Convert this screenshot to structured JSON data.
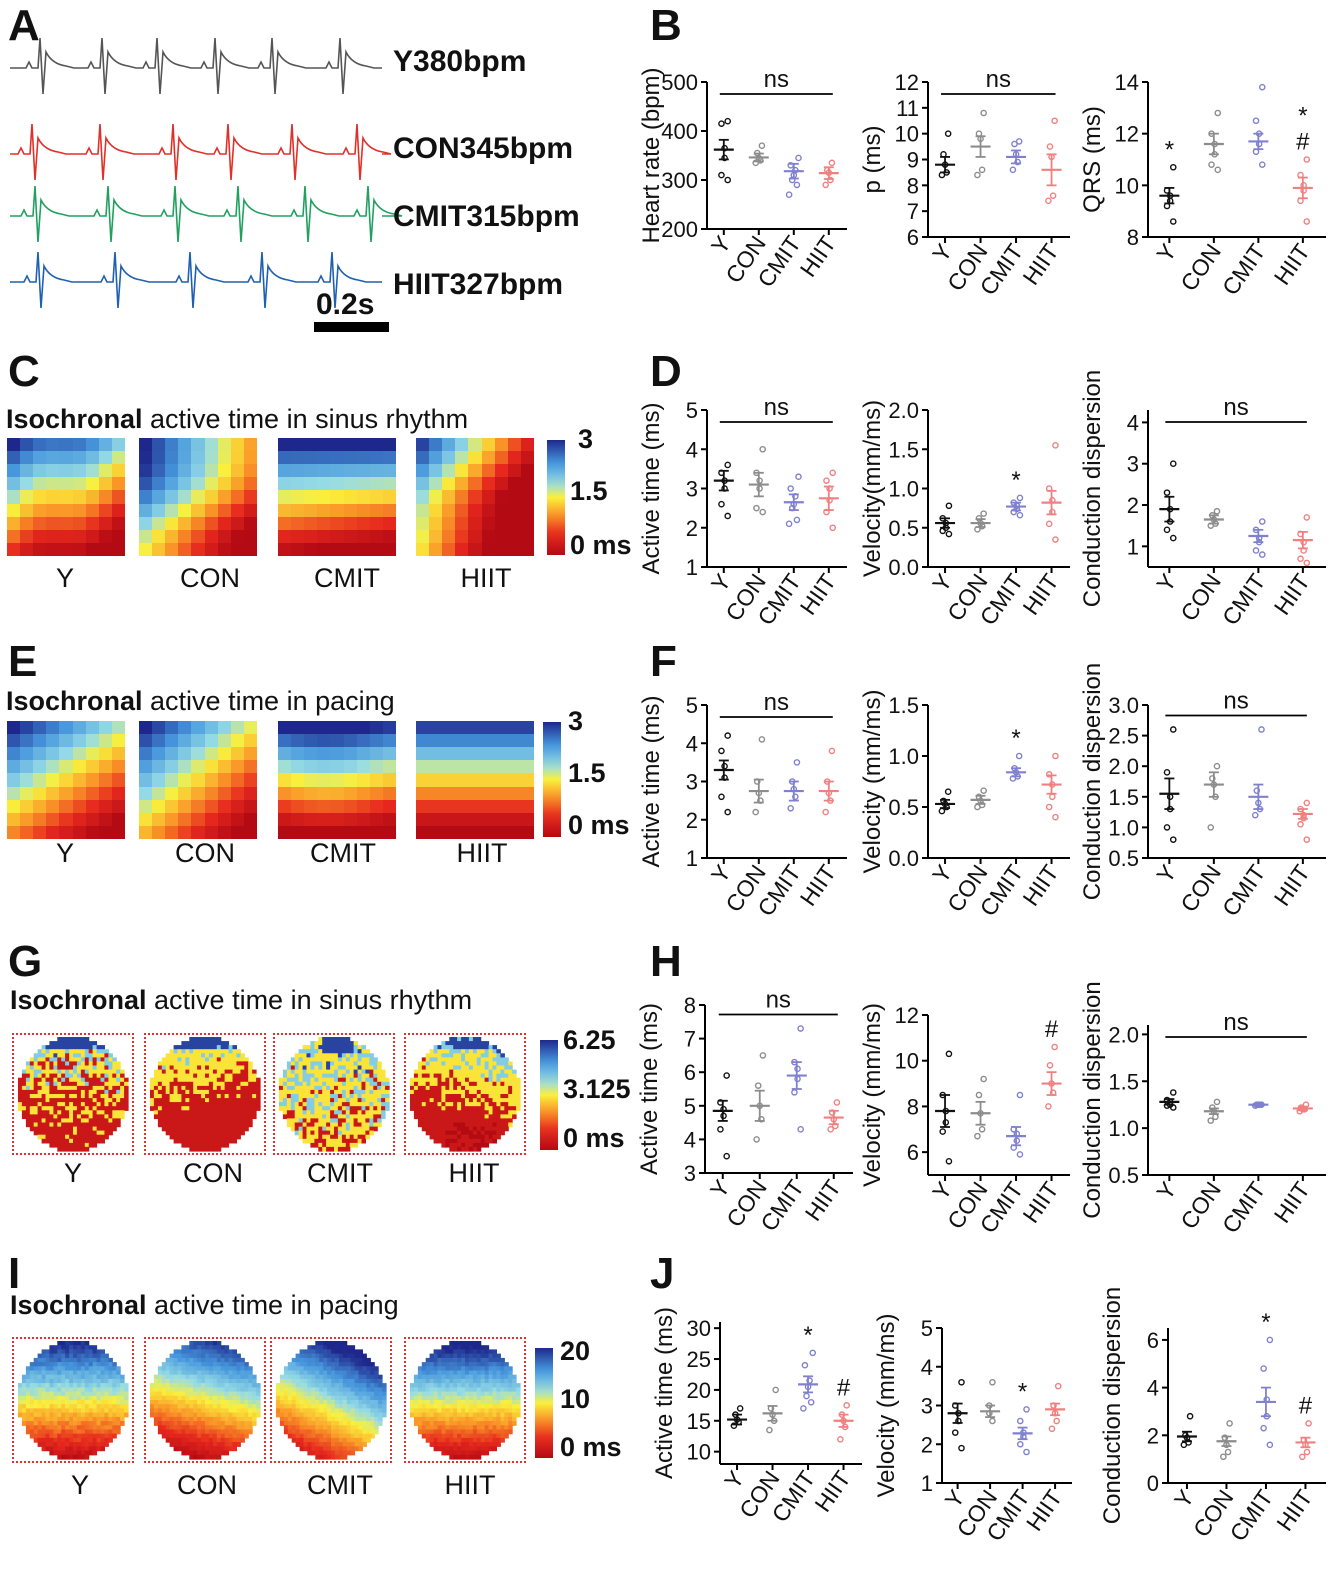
{
  "panel_letters": {
    "A": "A",
    "B": "B",
    "C": "C",
    "D": "D",
    "E": "E",
    "F": "F",
    "G": "G",
    "H": "H",
    "I": "I",
    "J": "J"
  },
  "headings": {
    "C": {
      "bold": "Isochronal",
      "rest": " active time in sinus rhythm"
    },
    "E": {
      "bold": "Isochronal",
      "rest": " active time in pacing"
    },
    "G": {
      "bold": "Isochronal",
      "rest": " active time in sinus rhythm"
    },
    "I": {
      "bold": "Isochronal",
      "rest": " active time in pacing"
    }
  },
  "ecg_traces": [
    {
      "label": "Y380bpm",
      "color": "#555555"
    },
    {
      "label": "CON345bpm",
      "color": "#e0302a"
    },
    {
      "label": "CMIT315bpm",
      "color": "#21a060"
    },
    {
      "label": "HIIT327bpm",
      "color": "#2060b0"
    }
  ],
  "scale_bar_label": "0.2s",
  "group_labels": [
    "Y",
    "CON",
    "CMIT",
    "HIIT"
  ],
  "colorbars": {
    "C": [
      "3",
      "1.5",
      "0 ms"
    ],
    "E": [
      "3",
      "1.5",
      "0 ms"
    ],
    "G": [
      "6.25",
      "3.125",
      "0 ms"
    ],
    "I": [
      "20",
      "10",
      "0 ms"
    ]
  },
  "colors": {
    "Y": "#111111",
    "CON": "#8c8c8c",
    "CMIT": "#8080d0",
    "HIIT": "#f08080"
  },
  "chart_data": [
    {
      "panel": "B",
      "type": "scatter",
      "ylabel": "Heart rate (bpm)",
      "ylim": [
        200,
        500
      ],
      "yticks": [
        "200",
        "300",
        "400",
        "500"
      ],
      "categories": [
        "Y",
        "CON",
        "CMIT",
        "HIIT"
      ],
      "means": [
        362,
        346,
        318,
        314
      ],
      "sem": [
        20,
        8,
        15,
        12
      ],
      "points": [
        [
          420,
          415,
          365,
          345,
          310,
          300
        ],
        [
          370,
          355,
          345,
          340,
          335
        ],
        [
          345,
          330,
          320,
          310,
          300,
          290,
          270
        ],
        [
          335,
          320,
          315,
          300,
          290
        ]
      ],
      "annotations": [
        {
          "text": "ns",
          "type": "bracket",
          "from": 0,
          "to": 3
        }
      ]
    },
    {
      "panel": "B",
      "type": "scatter",
      "ylabel": "p (ms)",
      "ylim": [
        6,
        12
      ],
      "yticks": [
        "6",
        "7",
        "8",
        "9",
        "10",
        "11",
        "12"
      ],
      "categories": [
        "Y",
        "CON",
        "CMIT",
        "HIIT"
      ],
      "means": [
        8.8,
        9.5,
        9.1,
        8.6
      ],
      "sem": [
        0.3,
        0.4,
        0.25,
        0.6
      ],
      "points": [
        [
          10,
          9.2,
          8.8,
          8.5,
          8.4
        ],
        [
          10.8,
          10,
          9.8,
          8.6,
          8.4
        ],
        [
          9.7,
          9.6,
          9.2,
          8.9,
          8.6
        ],
        [
          10.5,
          9.5,
          9.1,
          7.6,
          7.4
        ]
      ],
      "annotations": [
        {
          "text": "ns",
          "type": "bracket",
          "from": 0,
          "to": 3
        }
      ]
    },
    {
      "panel": "B",
      "type": "scatter",
      "ylabel": "QRS (ms)",
      "ylim": [
        8,
        14
      ],
      "yticks": [
        "8",
        "10",
        "12",
        "14"
      ],
      "categories": [
        "Y",
        "CON",
        "CMIT",
        "HIIT"
      ],
      "means": [
        9.6,
        11.6,
        11.7,
        9.9
      ],
      "sem": [
        0.3,
        0.4,
        0.3,
        0.4
      ],
      "points": [
        [
          10.7,
          9.8,
          9.6,
          9.4,
          9.2,
          8.6
        ],
        [
          12.8,
          12,
          11.6,
          11.2,
          10.8,
          10.6
        ],
        [
          13.8,
          12.5,
          12,
          11.6,
          11.3,
          10.8
        ],
        [
          11,
          10.4,
          10,
          9.8,
          9.4,
          8.6
        ]
      ],
      "annotations": [
        {
          "text": "*",
          "type": "above",
          "index": 0
        },
        {
          "text": "*",
          "type": "above",
          "index": 3
        },
        {
          "text": "#",
          "type": "above",
          "index": 3
        }
      ]
    },
    {
      "panel": "D",
      "type": "scatter",
      "ylabel": "Active time (ms)",
      "ylim": [
        1,
        5
      ],
      "yticks": [
        "1",
        "2",
        "3",
        "4",
        "5"
      ],
      "categories": [
        "Y",
        "CON",
        "CMIT",
        "HIIT"
      ],
      "means": [
        3.2,
        3.1,
        2.65,
        2.75
      ],
      "sem": [
        0.25,
        0.3,
        0.2,
        0.3
      ],
      "points": [
        [
          3.6,
          3.4,
          3.2,
          3.0,
          2.6,
          2.3
        ],
        [
          4.0,
          3.4,
          3.2,
          3.0,
          2.5,
          2.4
        ],
        [
          3.3,
          3.0,
          2.8,
          2.6,
          2.5,
          2.2,
          2.1
        ],
        [
          3.4,
          3.2,
          3.0,
          2.7,
          2.4,
          2.0
        ]
      ],
      "annotations": [
        {
          "text": "ns",
          "type": "bracket",
          "from": 0,
          "to": 3
        }
      ]
    },
    {
      "panel": "D",
      "type": "scatter",
      "ylabel": "Velocity(mm/ms)",
      "ylim": [
        0,
        2
      ],
      "yticks": [
        "0.0",
        "0.5",
        "1.0",
        "1.5",
        "2.0"
      ],
      "categories": [
        "Y",
        "CON",
        "CMIT",
        "HIIT"
      ],
      "means": [
        0.56,
        0.56,
        0.77,
        0.82
      ],
      "sem": [
        0.06,
        0.05,
        0.05,
        0.15
      ],
      "points": [
        [
          0.78,
          0.62,
          0.56,
          0.5,
          0.46,
          0.42
        ],
        [
          0.68,
          0.62,
          0.56,
          0.52,
          0.48
        ],
        [
          0.88,
          0.82,
          0.78,
          0.74,
          0.7,
          0.66
        ],
        [
          1.55,
          1.0,
          0.85,
          0.7,
          0.55,
          0.35
        ]
      ],
      "annotations": [
        {
          "text": "*",
          "type": "above",
          "index": 2
        }
      ]
    },
    {
      "panel": "D",
      "type": "scatter",
      "ylabel": "Conduction dispersion",
      "ylim": [
        0.5,
        4.3
      ],
      "yticks": [
        "1",
        "2",
        "3",
        "4"
      ],
      "categories": [
        "Y",
        "CON",
        "CMIT",
        "HIIT"
      ],
      "means": [
        1.9,
        1.65,
        1.25,
        1.15
      ],
      "sem": [
        0.3,
        0.1,
        0.15,
        0.2
      ],
      "points": [
        [
          3.0,
          2.3,
          1.9,
          1.6,
          1.4,
          1.2
        ],
        [
          1.85,
          1.75,
          1.65,
          1.55,
          1.5
        ],
        [
          1.6,
          1.4,
          1.2,
          1.1,
          0.9,
          0.8
        ],
        [
          1.7,
          1.3,
          1.1,
          0.9,
          0.7,
          0.6
        ]
      ],
      "annotations": [
        {
          "text": "ns",
          "type": "bracket",
          "from": 0,
          "to": 3
        }
      ]
    },
    {
      "panel": "F",
      "type": "scatter",
      "ylabel": "Active time (ms)",
      "ylim": [
        1,
        5
      ],
      "yticks": [
        "1",
        "2",
        "3",
        "4",
        "5"
      ],
      "categories": [
        "Y",
        "CON",
        "CMIT",
        "HIIT"
      ],
      "means": [
        3.3,
        2.75,
        2.75,
        2.75
      ],
      "sem": [
        0.25,
        0.3,
        0.25,
        0.25
      ],
      "points": [
        [
          4.2,
          3.8,
          3.4,
          3.1,
          2.6,
          2.2
        ],
        [
          4.1,
          3.0,
          2.7,
          2.5,
          2.2
        ],
        [
          3.5,
          3.0,
          2.8,
          2.6,
          2.3
        ],
        [
          3.8,
          3.0,
          2.7,
          2.5,
          2.2
        ]
      ],
      "annotations": [
        {
          "text": "ns",
          "type": "bracket",
          "from": 0,
          "to": 3
        }
      ]
    },
    {
      "panel": "F",
      "type": "scatter",
      "ylabel": "Velocity (mm/ms)",
      "ylim": [
        0,
        1.5
      ],
      "yticks": [
        "0.0",
        "0.5",
        "1.0",
        "1.5"
      ],
      "categories": [
        "Y",
        "CON",
        "CMIT",
        "HIIT"
      ],
      "means": [
        0.53,
        0.57,
        0.84,
        0.72
      ],
      "sem": [
        0.04,
        0.04,
        0.04,
        0.09
      ],
      "points": [
        [
          0.65,
          0.56,
          0.53,
          0.5,
          0.46
        ],
        [
          0.66,
          0.6,
          0.56,
          0.52,
          0.5
        ],
        [
          1.0,
          0.88,
          0.84,
          0.8,
          0.78
        ],
        [
          1.0,
          0.82,
          0.72,
          0.6,
          0.5,
          0.4
        ]
      ],
      "annotations": [
        {
          "text": "*",
          "type": "above",
          "index": 2
        }
      ]
    },
    {
      "panel": "F",
      "type": "scatter",
      "ylabel": "Conduction dispersion",
      "ylim": [
        0.5,
        3.0
      ],
      "yticks": [
        "0.5",
        "1.0",
        "1.5",
        "2.0",
        "2.5",
        "3.0"
      ],
      "categories": [
        "Y",
        "CON",
        "CMIT",
        "HIIT"
      ],
      "means": [
        1.55,
        1.7,
        1.5,
        1.22
      ],
      "sem": [
        0.25,
        0.2,
        0.2,
        0.08
      ],
      "points": [
        [
          2.6,
          1.9,
          1.5,
          1.3,
          1.0,
          0.8
        ],
        [
          2.0,
          1.8,
          1.7,
          1.5,
          1.0
        ],
        [
          2.6,
          1.6,
          1.4,
          1.3,
          1.2
        ],
        [
          1.4,
          1.3,
          1.2,
          1.15,
          1.05,
          0.8
        ]
      ],
      "annotations": [
        {
          "text": "ns",
          "type": "bracket",
          "from": 0,
          "to": 3
        }
      ]
    },
    {
      "panel": "H",
      "type": "scatter",
      "ylabel": "Active time (ms)",
      "ylim": [
        3,
        8
      ],
      "yticks": [
        "3",
        "4",
        "5",
        "6",
        "7",
        "8"
      ],
      "categories": [
        "Y",
        "CON",
        "CMIT",
        "HIIT"
      ],
      "means": [
        4.85,
        5.0,
        5.9,
        4.65
      ],
      "sem": [
        0.3,
        0.45,
        0.4,
        0.2
      ],
      "points": [
        [
          5.9,
          5.1,
          4.9,
          4.7,
          4.3,
          3.5
        ],
        [
          6.5,
          5.6,
          5.0,
          4.6,
          4.0
        ],
        [
          7.3,
          6.3,
          6.1,
          5.8,
          5.4,
          4.3
        ],
        [
          5.1,
          4.8,
          4.6,
          4.4,
          4.3
        ]
      ],
      "annotations": [
        {
          "text": "ns",
          "type": "bracket",
          "from": 0,
          "to": 3
        }
      ]
    },
    {
      "panel": "H",
      "type": "scatter",
      "ylabel": "Velocity (mm/ms)",
      "ylim": [
        5,
        12
      ],
      "yticks": [
        "6",
        "8",
        "10",
        "12"
      ],
      "categories": [
        "Y",
        "CON",
        "CMIT",
        "HIIT"
      ],
      "means": [
        7.8,
        7.7,
        6.7,
        9.0
      ],
      "sem": [
        0.7,
        0.5,
        0.4,
        0.5
      ],
      "points": [
        [
          10.3,
          8.5,
          7.8,
          7.3,
          6.9,
          5.6
        ],
        [
          9.2,
          8.5,
          7.7,
          7.0,
          6.7
        ],
        [
          8.5,
          7.0,
          6.8,
          6.5,
          6.2,
          5.9
        ],
        [
          10.6,
          9.8,
          9.0,
          8.6,
          8.0
        ]
      ],
      "annotations": [
        {
          "text": "#",
          "type": "above",
          "index": 3
        }
      ]
    },
    {
      "panel": "H",
      "type": "scatter",
      "ylabel": "Conduction dispersion",
      "ylim": [
        0.5,
        2.1
      ],
      "yticks": [
        "0.5",
        "1.0",
        "1.5",
        "2.0"
      ],
      "categories": [
        "Y",
        "CON",
        "CMIT",
        "HIIT"
      ],
      "means": [
        1.28,
        1.18,
        1.25,
        1.21
      ],
      "sem": [
        0.03,
        0.03,
        0.01,
        0.02
      ],
      "points": [
        [
          1.38,
          1.3,
          1.28,
          1.25,
          1.24,
          1.22
        ],
        [
          1.28,
          1.22,
          1.18,
          1.12,
          1.08
        ],
        [
          1.25,
          1.25,
          1.25,
          1.25,
          1.24
        ],
        [
          1.25,
          1.22,
          1.2,
          1.2,
          1.18
        ]
      ],
      "annotations": [
        {
          "text": "ns",
          "type": "bracket",
          "from": 0,
          "to": 3
        }
      ]
    },
    {
      "panel": "J",
      "type": "scatter",
      "ylabel": "Active time (ms)",
      "ylim": [
        8,
        31
      ],
      "yticks": [
        "10",
        "15",
        "20",
        "25",
        "30"
      ],
      "categories": [
        "Y",
        "CON",
        "CMIT",
        "HIIT"
      ],
      "means": [
        15.2,
        16.2,
        20.9,
        15.0
      ],
      "sem": [
        0.8,
        1.2,
        1.3,
        1.0
      ],
      "points": [
        [
          17,
          16,
          15.2,
          14.8,
          14.2
        ],
        [
          20,
          17,
          16,
          15,
          13.5
        ],
        [
          26,
          24,
          21.5,
          20.5,
          19,
          18,
          17
        ],
        [
          17.5,
          16,
          15,
          14,
          12
        ]
      ],
      "annotations": [
        {
          "text": "*",
          "type": "above",
          "index": 2
        },
        {
          "text": "#",
          "type": "above",
          "index": 3
        }
      ]
    },
    {
      "panel": "J",
      "type": "scatter",
      "ylabel": "Velocity (mm/ms)",
      "ylim": [
        1,
        5
      ],
      "yticks": [
        "1",
        "2",
        "3",
        "4",
        "5"
      ],
      "categories": [
        "Y",
        "CON",
        "CMIT",
        "HIIT"
      ],
      "means": [
        2.8,
        2.85,
        2.28,
        2.9
      ],
      "sem": [
        0.25,
        0.15,
        0.15,
        0.15
      ],
      "points": [
        [
          3.6,
          3.0,
          2.8,
          2.6,
          2.3,
          1.9
        ],
        [
          3.6,
          3.0,
          2.8,
          2.6
        ],
        [
          2.9,
          2.6,
          2.3,
          2.2,
          2.0,
          1.8
        ],
        [
          3.5,
          3.0,
          2.8,
          2.6,
          2.4
        ]
      ],
      "annotations": [
        {
          "text": "*",
          "type": "above",
          "index": 2
        }
      ]
    },
    {
      "panel": "J",
      "type": "scatter",
      "ylabel": "Conduction dispersion",
      "ylim": [
        0,
        6.5
      ],
      "yticks": [
        "0",
        "2",
        "4",
        "6"
      ],
      "categories": [
        "Y",
        "CON",
        "CMIT",
        "HIIT"
      ],
      "means": [
        1.95,
        1.75,
        3.4,
        1.7
      ],
      "sem": [
        0.2,
        0.2,
        0.6,
        0.2
      ],
      "points": [
        [
          2.8,
          2.0,
          1.9,
          1.7,
          1.6
        ],
        [
          2.5,
          1.9,
          1.6,
          1.3,
          1.1
        ],
        [
          6.0,
          4.8,
          3.5,
          2.8,
          2.3,
          1.6
        ],
        [
          2.5,
          1.8,
          1.6,
          1.3,
          1.1
        ]
      ],
      "annotations": [
        {
          "text": "*",
          "type": "above",
          "index": 2
        },
        {
          "text": "#",
          "type": "above",
          "index": 3
        }
      ]
    }
  ]
}
